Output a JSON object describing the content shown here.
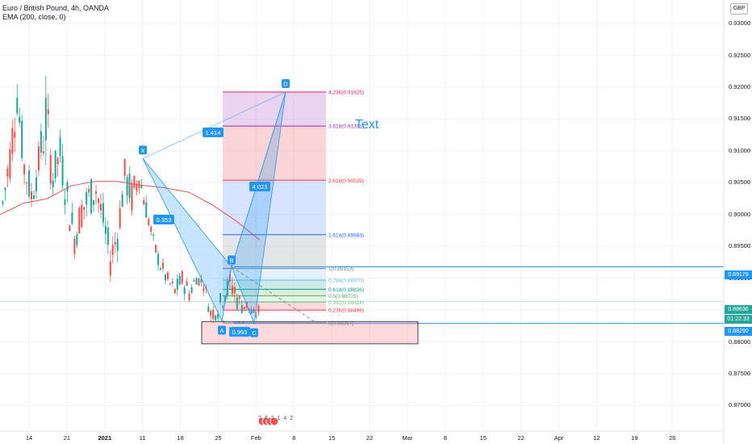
{
  "header": {
    "symbol": "Euro / British Pound, 4h, OANDA",
    "indicator": "EMA (200, close, 0)"
  },
  "currency_button": "GBP",
  "colors": {
    "up": "#26a69a",
    "down": "#ef5350",
    "ema": "#e05555",
    "pattern": "#2196f3",
    "price_tag": "#26a69a",
    "level_tag": "#2196f3"
  },
  "price_tags": {
    "current": "0.88636",
    "countdown": "01:22:33",
    "upper_line": "0.89179",
    "lower_line": "0.88290"
  },
  "annotation_text": "Text",
  "events_label": "7 8 2 1 4 2",
  "chart_data": {
    "type": "candlestick",
    "title": "Euro / British Pound, 4h, OANDA",
    "indicator": "EMA (200, close, 0)",
    "ylim": [
      0.8665,
      0.9337
    ],
    "y_ticks": [
      "0.93000",
      "0.92500",
      "0.92000",
      "0.91500",
      "0.91000",
      "0.90500",
      "0.90000",
      "0.89500",
      "0.89000",
      "0.88500",
      "0.88000",
      "0.87500",
      "0.87000"
    ],
    "x_ticks": [
      "14",
      "21",
      "2021",
      "11",
      "18",
      "25",
      "Feb",
      "8",
      "15",
      "22",
      "Mar",
      "8",
      "15",
      "22",
      "Apr",
      "12",
      "19",
      "26"
    ],
    "price_path": [
      [
        0.899,
        0.9045
      ],
      [
        0.905,
        0.913
      ],
      [
        0.915,
        0.9225
      ],
      [
        0.904,
        0.911
      ],
      [
        0.9,
        0.906
      ],
      [
        0.905,
        0.911
      ],
      [
        0.908,
        0.9215
      ],
      [
        0.903,
        0.909
      ],
      [
        0.906,
        0.913
      ],
      [
        0.899,
        0.906
      ],
      [
        0.8935,
        0.899
      ],
      [
        0.8975,
        0.904
      ],
      [
        0.899,
        0.906
      ],
      [
        0.901,
        0.907
      ],
      [
        0.896,
        0.902
      ],
      [
        0.89,
        0.896
      ],
      [
        0.894,
        0.9
      ],
      [
        0.903,
        0.909
      ],
      [
        0.8995,
        0.906
      ],
      [
        0.904,
        0.908
      ],
      [
        0.899,
        0.903
      ],
      [
        0.894,
        0.897
      ],
      [
        0.8905,
        0.8935
      ],
      [
        0.888,
        0.891
      ],
      [
        0.8865,
        0.8895
      ],
      [
        0.888,
        0.8915
      ],
      [
        0.886,
        0.8895
      ],
      [
        0.889,
        0.891
      ],
      [
        0.888,
        0.8905
      ],
      [
        0.883,
        0.886
      ],
      [
        0.8835,
        0.887
      ],
      [
        0.886,
        0.8895
      ],
      [
        0.886,
        0.892
      ],
      [
        0.884,
        0.888
      ],
      [
        0.8845,
        0.887
      ],
      [
        0.883,
        0.885
      ],
      [
        0.884,
        0.8865
      ]
    ],
    "ema_path": [
      0.9,
      0.9018,
      0.9025,
      0.9045,
      0.9052,
      0.9052,
      0.9046,
      0.9042,
      0.9035,
      0.9015,
      0.899,
      0.896
    ],
    "xabcd": {
      "points": [
        {
          "label": "X",
          "price": 0.9088
        },
        {
          "label": "A",
          "price": 0.8833
        },
        {
          "label": "B",
          "price": 0.8918
        },
        {
          "label": "C",
          "price": 0.8829
        },
        {
          "label": "D",
          "price": 0.91925
        }
      ],
      "ratios": [
        {
          "label": "0.353"
        },
        {
          "label": "0.993"
        },
        {
          "label": "4.023"
        },
        {
          "label": "1.414"
        }
      ]
    },
    "fib_levels": [
      {
        "label": "4.236(0.91925)",
        "price": 0.91925,
        "color": "#e91e63",
        "fill": "rgba(233,30,99,0.22)"
      },
      {
        "label": "3.618(0.91391)",
        "price": 0.91391,
        "color": "#9c27b0",
        "fill": "rgba(156,39,176,0.20)"
      },
      {
        "label": "2.618(0.90539)",
        "price": 0.90539,
        "color": "#f23645",
        "fill": "rgba(242,54,69,0.22)"
      },
      {
        "label": "1.618(0.89683)",
        "price": 0.89683,
        "color": "#2962ff",
        "fill": "rgba(41,98,255,0.18)"
      },
      {
        "label": "1(0.89153)",
        "price": 0.89153,
        "color": "#787b86",
        "fill": "rgba(120,123,134,0.20)"
      },
      {
        "label": "0.786(0.88970)",
        "price": 0.8897,
        "color": "#64b5f6",
        "fill": "rgba(100,181,246,0.18)"
      },
      {
        "label": "0.618(0.88826)",
        "price": 0.88826,
        "color": "#089981",
        "fill": "rgba(8,153,129,0.20)"
      },
      {
        "label": "0.5(0.88725)",
        "price": 0.88725,
        "color": "#4caf50",
        "fill": "rgba(76,175,80,0.20)"
      },
      {
        "label": "0.382(0.88624)",
        "price": 0.88624,
        "color": "#81c784",
        "fill": "rgba(129,199,132,0.22)"
      },
      {
        "label": "0.236(0.88499)",
        "price": 0.88499,
        "color": "#f23645",
        "fill": "rgba(242,54,69,0.18)"
      },
      {
        "label": "0(0.88297)",
        "price": 0.88297,
        "color": "#787b86",
        "fill": "none"
      }
    ],
    "horizontal_lines": [
      {
        "price": 0.89179,
        "color": "#2196f3"
      },
      {
        "price": 0.8829,
        "color": "#2196f3"
      },
      {
        "price": 0.88636,
        "color": "#26a69a"
      }
    ],
    "box": {
      "top": 0.8832,
      "bottom": 0.8797,
      "color": "#f23645"
    }
  }
}
